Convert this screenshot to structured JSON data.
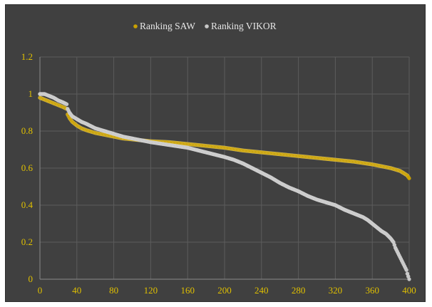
{
  "chart_data": {
    "type": "scatter",
    "title": "",
    "xlabel": "",
    "ylabel": "",
    "xlim": [
      0,
      400
    ],
    "ylim": [
      0,
      1.2
    ],
    "x_ticks": [
      "0",
      "40",
      "80",
      "120",
      "160",
      "200",
      "240",
      "280",
      "320",
      "360",
      "400"
    ],
    "y_ticks": [
      "0",
      "0.2",
      "0.4",
      "0.6",
      "0.8",
      "1",
      "1.2"
    ],
    "grid": true,
    "legend_position": "top-center",
    "background": "#404040",
    "series": [
      {
        "name": "Ranking SAW",
        "color": "#c9a000",
        "points": [
          [
            0,
            0.98
          ],
          [
            5,
            0.97
          ],
          [
            10,
            0.96
          ],
          [
            15,
            0.95
          ],
          [
            20,
            0.94
          ],
          [
            25,
            0.93
          ],
          [
            29,
            0.92
          ],
          [
            30,
            0.89
          ],
          [
            32,
            0.87
          ],
          [
            35,
            0.85
          ],
          [
            40,
            0.83
          ],
          [
            45,
            0.815
          ],
          [
            50,
            0.805
          ],
          [
            60,
            0.79
          ],
          [
            70,
            0.78
          ],
          [
            80,
            0.77
          ],
          [
            90,
            0.76
          ],
          [
            100,
            0.755
          ],
          [
            110,
            0.75
          ],
          [
            120,
            0.745
          ],
          [
            140,
            0.74
          ],
          [
            160,
            0.73
          ],
          [
            180,
            0.72
          ],
          [
            200,
            0.71
          ],
          [
            220,
            0.695
          ],
          [
            240,
            0.685
          ],
          [
            260,
            0.675
          ],
          [
            280,
            0.665
          ],
          [
            300,
            0.655
          ],
          [
            320,
            0.645
          ],
          [
            340,
            0.635
          ],
          [
            360,
            0.62
          ],
          [
            370,
            0.61
          ],
          [
            380,
            0.6
          ],
          [
            390,
            0.585
          ],
          [
            395,
            0.57
          ],
          [
            398,
            0.56
          ],
          [
            400,
            0.545
          ]
        ]
      },
      {
        "name": "Ranking VIKOR",
        "color": "#c8c8c8",
        "points": [
          [
            0,
            1.0
          ],
          [
            5,
            1.0
          ],
          [
            10,
            0.99
          ],
          [
            15,
            0.98
          ],
          [
            20,
            0.965
          ],
          [
            25,
            0.955
          ],
          [
            29,
            0.945
          ],
          [
            30,
            0.92
          ],
          [
            32,
            0.9
          ],
          [
            35,
            0.88
          ],
          [
            40,
            0.865
          ],
          [
            45,
            0.85
          ],
          [
            50,
            0.84
          ],
          [
            60,
            0.815
          ],
          [
            70,
            0.8
          ],
          [
            80,
            0.785
          ],
          [
            90,
            0.77
          ],
          [
            100,
            0.76
          ],
          [
            110,
            0.75
          ],
          [
            120,
            0.74
          ],
          [
            140,
            0.725
          ],
          [
            160,
            0.71
          ],
          [
            180,
            0.685
          ],
          [
            200,
            0.66
          ],
          [
            210,
            0.645
          ],
          [
            220,
            0.625
          ],
          [
            230,
            0.6
          ],
          [
            240,
            0.575
          ],
          [
            250,
            0.55
          ],
          [
            260,
            0.52
          ],
          [
            270,
            0.495
          ],
          [
            280,
            0.475
          ],
          [
            290,
            0.45
          ],
          [
            300,
            0.43
          ],
          [
            310,
            0.415
          ],
          [
            320,
            0.4
          ],
          [
            330,
            0.375
          ],
          [
            340,
            0.355
          ],
          [
            350,
            0.335
          ],
          [
            355,
            0.32
          ],
          [
            360,
            0.3
          ],
          [
            365,
            0.28
          ],
          [
            370,
            0.26
          ],
          [
            375,
            0.245
          ],
          [
            380,
            0.22
          ],
          [
            383,
            0.2
          ],
          [
            385,
            0.17
          ],
          [
            387,
            0.15
          ],
          [
            389,
            0.13
          ],
          [
            391,
            0.11
          ],
          [
            393,
            0.09
          ],
          [
            395,
            0.07
          ],
          [
            397,
            0.05
          ],
          [
            398,
            0.03
          ],
          [
            399,
            0.015
          ],
          [
            400,
            0.0
          ]
        ]
      }
    ]
  }
}
